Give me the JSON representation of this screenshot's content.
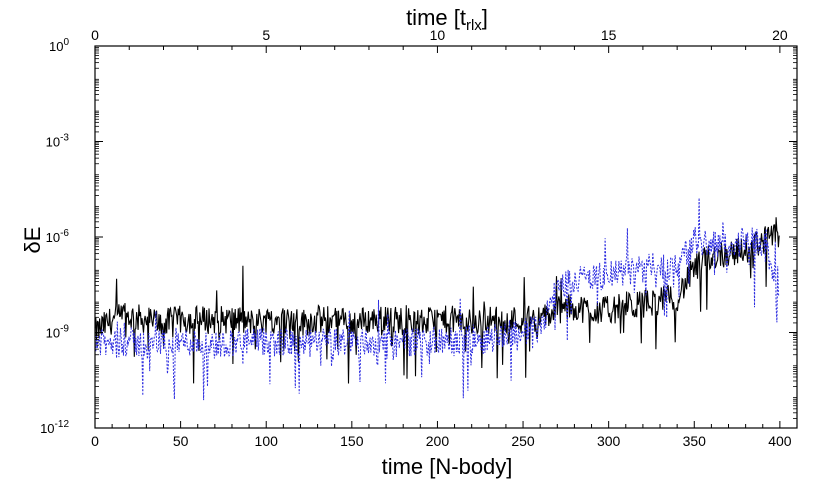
{
  "chart_data": {
    "type": "line",
    "xlabel_bottom": "time [N-body]",
    "xlabel_top": {
      "main": "time [t",
      "sub": "rlx",
      "close": "]"
    },
    "ylabel": "δE",
    "yscale": "log",
    "xlim_bottom": [
      0,
      410
    ],
    "xlim_top": [
      0,
      20.5
    ],
    "ylim": [
      1e-12,
      1
    ],
    "xticks_bottom": [
      0,
      50,
      100,
      150,
      200,
      250,
      300,
      350,
      400
    ],
    "xticks_top": [
      0,
      5,
      10,
      15,
      20
    ],
    "yticks": [
      {
        "value": 1.0,
        "base": "10",
        "exp": "0"
      },
      {
        "value": 0.001,
        "base": "10",
        "exp": "-3"
      },
      {
        "value": 1e-06,
        "base": "10",
        "exp": "-6"
      },
      {
        "value": 1e-09,
        "base": "10",
        "exp": "-9"
      },
      {
        "value": 1e-12,
        "base": "10",
        "exp": "-12"
      }
    ],
    "grid": false,
    "legend": "none",
    "series": [
      {
        "color": "#000000",
        "style": "solid",
        "x": [
          0,
          10,
          20,
          30,
          40,
          50,
          60,
          70,
          80,
          90,
          100,
          110,
          120,
          130,
          140,
          150,
          160,
          170,
          180,
          190,
          200,
          210,
          220,
          230,
          240,
          250,
          260,
          270,
          280,
          290,
          300,
          310,
          320,
          330,
          340,
          350,
          360,
          370,
          380,
          390,
          400
        ],
        "log10_y": [
          -9.0,
          -8.6,
          -8.5,
          -8.6,
          -8.7,
          -8.6,
          -8.6,
          -8.6,
          -8.6,
          -8.7,
          -8.6,
          -8.6,
          -8.7,
          -8.6,
          -8.6,
          -8.7,
          -8.6,
          -8.6,
          -8.6,
          -8.7,
          -8.6,
          -8.6,
          -8.7,
          -8.6,
          -8.6,
          -8.6,
          -8.6,
          -8.3,
          -8.2,
          -8.3,
          -8.3,
          -8.2,
          -8.1,
          -8.0,
          -7.9,
          -7.0,
          -6.6,
          -6.5,
          -6.4,
          -6.1,
          -6.0
        ]
      },
      {
        "color": "#2a2ae0",
        "style": "dotted",
        "x": [
          0,
          10,
          20,
          30,
          40,
          50,
          60,
          70,
          80,
          90,
          100,
          110,
          120,
          130,
          140,
          150,
          160,
          170,
          180,
          190,
          200,
          210,
          220,
          230,
          240,
          250,
          260,
          270,
          280,
          290,
          300,
          310,
          320,
          330,
          340,
          350,
          360,
          370,
          380,
          390,
          400
        ],
        "log10_y": [
          -9.3,
          -9.4,
          -9.3,
          -9.4,
          -9.3,
          -9.3,
          -9.3,
          -9.4,
          -9.3,
          -9.3,
          -9.3,
          -9.3,
          -9.4,
          -9.3,
          -9.3,
          -9.3,
          -9.3,
          -9.4,
          -9.3,
          -9.3,
          -9.3,
          -9.3,
          -9.2,
          -9.2,
          -9.0,
          -9.0,
          -8.8,
          -7.6,
          -7.3,
          -7.3,
          -7.2,
          -7.1,
          -7.0,
          -6.9,
          -6.9,
          -6.1,
          -6.2,
          -6.3,
          -6.1,
          -6.2,
          -7.5
        ]
      }
    ]
  }
}
